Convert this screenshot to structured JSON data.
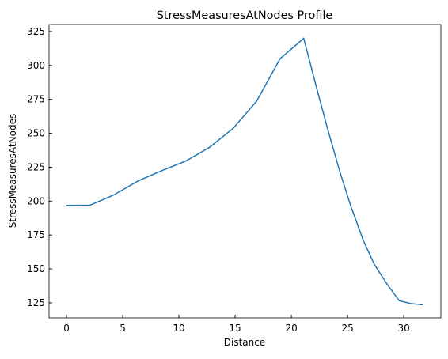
{
  "chart_data": {
    "type": "line",
    "title": "StressMeasuresAtNodes Profile",
    "x_label": "Distance",
    "y_label": "StressMeasuresAtNodes",
    "x": [
      0,
      2.1,
      4.2,
      6.4,
      8.5,
      10.6,
      12.7,
      14.8,
      16.9,
      19.0,
      21.1,
      22.2,
      23.2,
      24.3,
      25.3,
      26.4,
      27.4,
      28.5,
      29.6,
      30.6,
      31.7
    ],
    "series": [
      {
        "name": "StressMeasuresAtNodes",
        "color": "#1f77b4",
        "values": [
          196.8,
          197,
          204.5,
          215,
          222.5,
          229.5,
          239.5,
          253.5,
          273.5,
          305,
          320,
          285,
          254,
          222,
          196,
          171,
          153,
          139,
          126.5,
          124.5,
          123.5
        ]
      }
    ],
    "xlim": [
      -1.55,
      33.3
    ],
    "ylim": [
      113.9,
      330.2
    ],
    "xticks": [
      0,
      5,
      10,
      15,
      20,
      25,
      30
    ],
    "yticks": [
      125,
      150,
      175,
      200,
      225,
      250,
      275,
      300,
      325
    ]
  }
}
